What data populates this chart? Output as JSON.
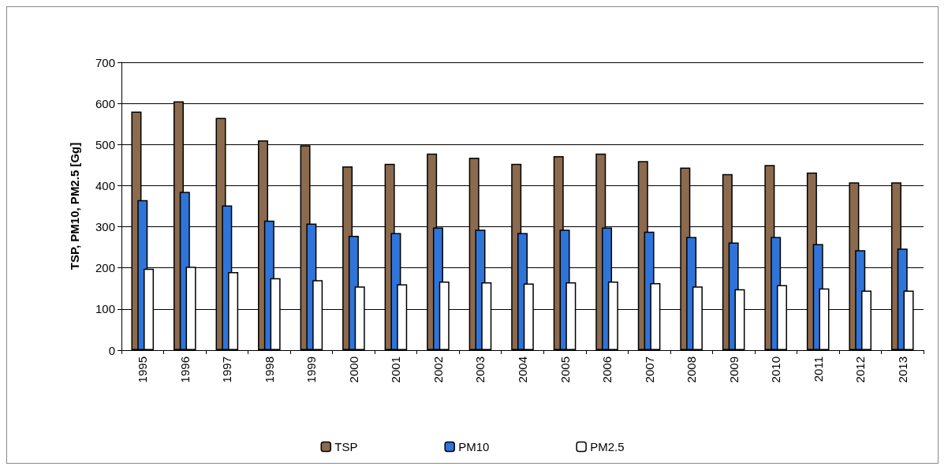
{
  "chart_data": {
    "type": "bar",
    "ylabel": "TSP, PM10, PM2.5 [Gg]",
    "categories": [
      "1995",
      "1996",
      "1997",
      "1998",
      "1999",
      "2000",
      "2001",
      "2002",
      "2003",
      "2004",
      "2005",
      "2006",
      "2007",
      "2008",
      "2009",
      "2010",
      "2011",
      "2012",
      "2013"
    ],
    "series": [
      {
        "name": "TSP",
        "color": "#8b6a4e",
        "values": [
          580,
          605,
          565,
          510,
          498,
          447,
          453,
          478,
          468,
          453,
          472,
          478,
          460,
          444,
          428,
          450,
          432,
          408,
          408
        ]
      },
      {
        "name": "PM10",
        "color": "#2f74d8",
        "values": [
          365,
          385,
          352,
          315,
          308,
          278,
          285,
          298,
          293,
          285,
          293,
          298,
          288,
          275,
          262,
          275,
          258,
          243,
          247
        ]
      },
      {
        "name": "PM2.5",
        "color": "#ffffff",
        "values": [
          198,
          203,
          190,
          175,
          170,
          155,
          160,
          167,
          165,
          162,
          165,
          167,
          163,
          155,
          148,
          158,
          150,
          145,
          145
        ]
      }
    ],
    "ylim": [
      0,
      700
    ],
    "yticks": [
      0,
      100,
      200,
      300,
      400,
      500,
      600,
      700
    ],
    "grid": "y",
    "legend": "bottom"
  }
}
